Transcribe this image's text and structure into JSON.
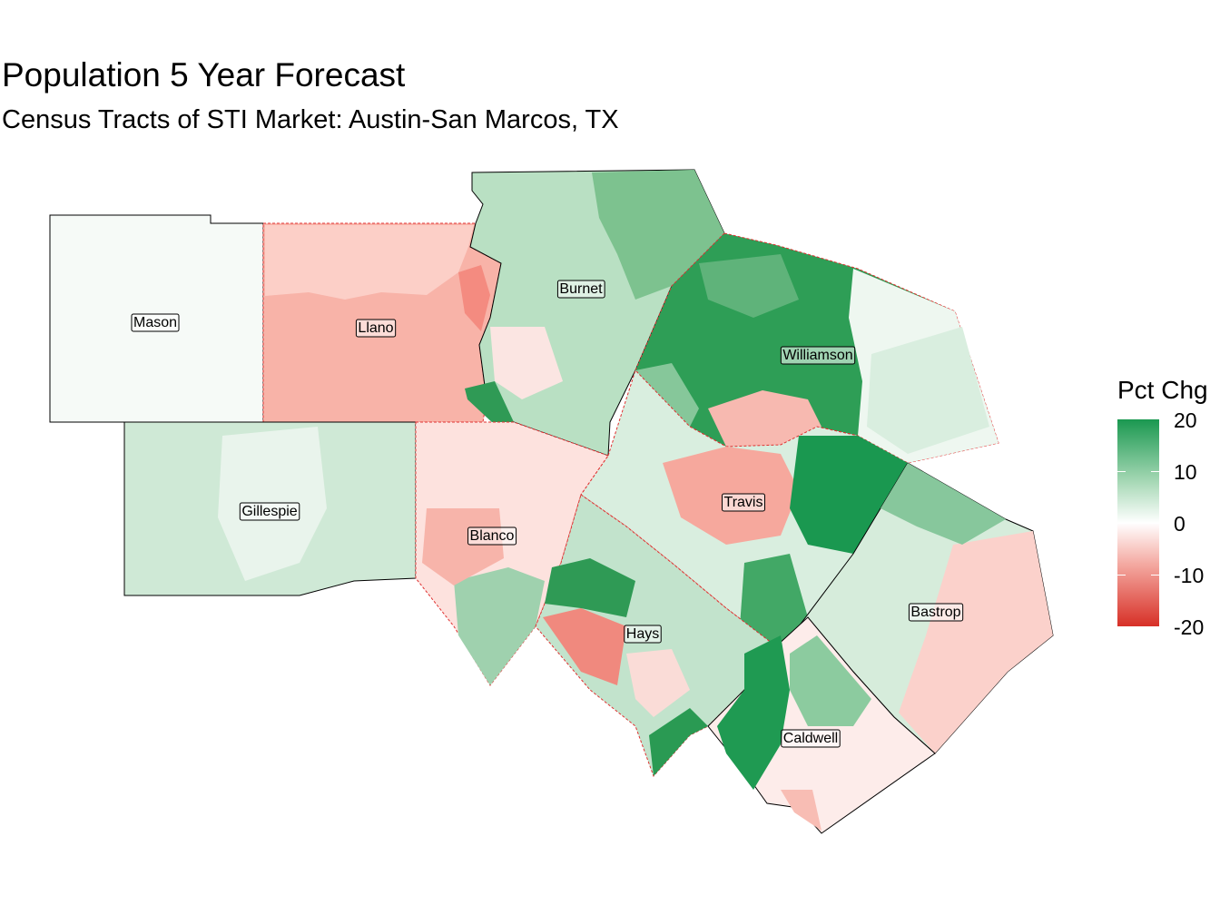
{
  "title": "Population 5 Year Forecast",
  "subtitle": "Census Tracts of STI Market: Austin-San Marcos, TX",
  "legend": {
    "title": "Pct Chg",
    "ticks": [
      "20",
      "10",
      "0",
      "-10",
      "-20"
    ],
    "range": [
      -20,
      20
    ],
    "colors": {
      "high": "#1a9850",
      "mid": "#ffffff",
      "low": "#d73027"
    }
  },
  "counties": [
    {
      "name": "Mason",
      "pct_chg": 1
    },
    {
      "name": "Llano",
      "pct_chg": -9
    },
    {
      "name": "Burnet",
      "pct_chg": 6
    },
    {
      "name": "Williamson",
      "pct_chg": 14
    },
    {
      "name": "Gillespie",
      "pct_chg": 4
    },
    {
      "name": "Blanco",
      "pct_chg": -4
    },
    {
      "name": "Travis",
      "pct_chg": 2
    },
    {
      "name": "Hays",
      "pct_chg": 9
    },
    {
      "name": "Bastrop",
      "pct_chg": 3
    },
    {
      "name": "Caldwell",
      "pct_chg": 5
    }
  ]
}
